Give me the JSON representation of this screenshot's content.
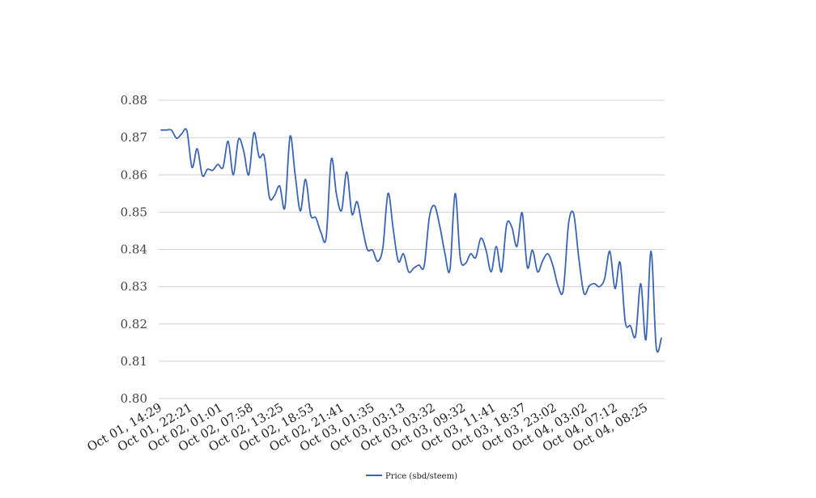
{
  "chart_data": {
    "type": "line",
    "title": "",
    "xlabel": "",
    "ylabel": "",
    "ylim": [
      0.8,
      0.88
    ],
    "yticks": [
      "0.80",
      "0.81",
      "0.82",
      "0.83",
      "0.84",
      "0.85",
      "0.86",
      "0.87",
      "0.88"
    ],
    "xtick_labels": [
      "Oct 01, 14:29",
      "Oct 01, 22:21",
      "Oct 02, 01:01",
      "Oct 02, 07:58",
      "Oct 02, 13:25",
      "Oct 02, 18:53",
      "Oct 02, 21:41",
      "Oct 03, 01:35",
      "Oct 03, 03:13",
      "Oct 03, 03:32",
      "Oct 03, 09:32",
      "Oct 03, 11:41",
      "Oct 03, 18:37",
      "Oct 03, 23:02",
      "Oct 04, 03:02",
      "Oct 04, 07:12",
      "Oct 04, 08:25"
    ],
    "grid": true,
    "legend_position": "bottom-center",
    "line_color": "#3a64b4",
    "series": [
      {
        "name": "Price (sbd/steem)",
        "values": [
          0.872,
          0.872,
          0.872,
          0.8698,
          0.871,
          0.8718,
          0.862,
          0.867,
          0.8598,
          0.8615,
          0.8612,
          0.8628,
          0.862,
          0.869,
          0.86,
          0.8695,
          0.8665,
          0.86,
          0.8713,
          0.8648,
          0.865,
          0.854,
          0.8545,
          0.857,
          0.8512,
          0.8703,
          0.86,
          0.8503,
          0.8588,
          0.8492,
          0.8485,
          0.8445,
          0.8432,
          0.8642,
          0.8548,
          0.8505,
          0.8608,
          0.8495,
          0.8528,
          0.846,
          0.84,
          0.8398,
          0.8368,
          0.8405,
          0.855,
          0.8455,
          0.8368,
          0.8388,
          0.834,
          0.835,
          0.8358,
          0.8355,
          0.8485,
          0.8517,
          0.8465,
          0.8392,
          0.8345,
          0.855,
          0.8378,
          0.8362,
          0.8388,
          0.8378,
          0.843,
          0.8398,
          0.834,
          0.8408,
          0.834,
          0.8467,
          0.846,
          0.8408,
          0.8498,
          0.8352,
          0.8398,
          0.834,
          0.837,
          0.8388,
          0.8355,
          0.83,
          0.8292,
          0.8468,
          0.8495,
          0.8375,
          0.8282,
          0.8302,
          0.8308,
          0.83,
          0.8322,
          0.8395,
          0.8295,
          0.8365,
          0.8205,
          0.8195,
          0.8168,
          0.8308,
          0.8158,
          0.8395,
          0.8138,
          0.8162
        ]
      }
    ]
  }
}
